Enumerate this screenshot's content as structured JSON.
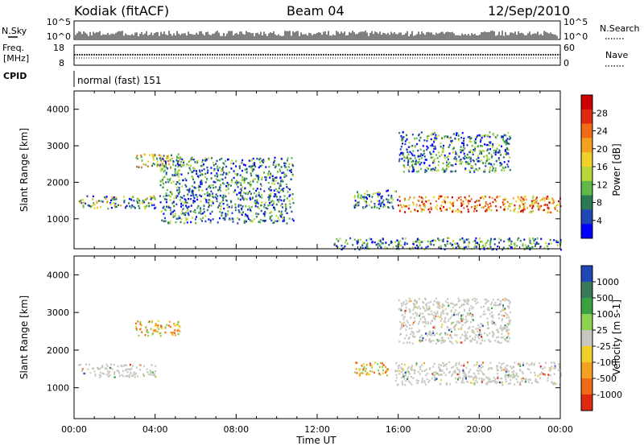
{
  "header": {
    "station": "Kodiak (fitACF)",
    "beam": "Beam 04",
    "date": "12/Sep/2010"
  },
  "strips": {
    "nsky_label": "N.Sky",
    "nsky_ticks": [
      "10^5",
      "10^0"
    ],
    "nsearch_label": "N.Search",
    "nsearch_ticks": [
      "10^5",
      "10^0"
    ],
    "freq_label": "Freq.",
    "freq_unit": "[MHz]",
    "freq_ticks": [
      "18",
      "8"
    ],
    "nave_label": "Nave",
    "nave_ticks": [
      "60",
      "0"
    ],
    "cpid_label": "CPID",
    "cpid_value": "normal (fast) 151"
  },
  "chart_data": [
    {
      "type": "heatmap",
      "panel": "power",
      "ylabel": "Slant Range [km]",
      "xlabel": "",
      "ylim": [
        180,
        4500
      ],
      "xlim": [
        0,
        24
      ],
      "yticks": [
        "1000",
        "2000",
        "3000",
        "4000"
      ],
      "colorbar": {
        "label": "Power [dB]",
        "ticks": [
          "4",
          "8",
          "12",
          "16",
          "20",
          "24",
          "28"
        ],
        "colors": [
          "#0000ff",
          "#1e46b4",
          "#2a7a55",
          "#5fb84a",
          "#b8d83a",
          "#f2d02a",
          "#f5a020",
          "#f06a18",
          "#e02a10",
          "#cc0000"
        ]
      },
      "regions": [
        {
          "t0": 0.2,
          "t1": 4.0,
          "r0": 1300,
          "r1": 1650,
          "level": "medium"
        },
        {
          "t0": 3.0,
          "t1": 5.2,
          "r0": 2400,
          "r1": 2800,
          "level": "medium-high"
        },
        {
          "t0": 4.2,
          "t1": 10.8,
          "r0": 900,
          "r1": 2700,
          "level": "low"
        },
        {
          "t0": 13.7,
          "t1": 16.0,
          "r0": 1300,
          "r1": 1800,
          "level": "low"
        },
        {
          "t0": 15.8,
          "t1": 24.0,
          "r0": 1200,
          "r1": 1650,
          "level": "high"
        },
        {
          "t0": 16.0,
          "t1": 21.5,
          "r0": 2300,
          "r1": 3400,
          "level": "low"
        },
        {
          "t0": 12.8,
          "t1": 24.0,
          "r0": 180,
          "r1": 500,
          "level": "low"
        }
      ]
    },
    {
      "type": "heatmap",
      "panel": "velocity",
      "ylabel": "Slant Range [km]",
      "xlabel": "Time UT",
      "ylim": [
        180,
        4500
      ],
      "xlim": [
        0,
        24
      ],
      "xticks": [
        "00:00",
        "04:00",
        "08:00",
        "12:00",
        "16:00",
        "20:00",
        "00:00"
      ],
      "yticks": [
        "1000",
        "2000",
        "3000",
        "4000"
      ],
      "colorbar": {
        "label": "Velocity [m s-1]",
        "ticks": [
          "1000",
          "500",
          "100",
          "25",
          "-25",
          "-100",
          "-500",
          "-1000"
        ],
        "colors": [
          "#1e46b4",
          "#3a7a5a",
          "#3aa040",
          "#8ed050",
          "#c8c8c0",
          "#f2d02a",
          "#f5a020",
          "#f06a18",
          "#e02a10"
        ]
      },
      "regions": [
        {
          "t0": 0.2,
          "t1": 4.0,
          "r0": 1300,
          "r1": 1650,
          "value": "ground scatter"
        },
        {
          "t0": 3.0,
          "t1": 5.2,
          "r0": 2400,
          "r1": 2800,
          "value": "-100 to -500"
        },
        {
          "t0": 13.7,
          "t1": 15.5,
          "r0": 1350,
          "r1": 1700,
          "value": "-100 to -500"
        },
        {
          "t0": 15.8,
          "t1": 24.0,
          "r0": 1100,
          "r1": 1700,
          "value": "ground scatter"
        },
        {
          "t0": 16.0,
          "t1": 21.5,
          "r0": 2200,
          "r1": 3400,
          "value": "ground scatter"
        }
      ]
    }
  ]
}
